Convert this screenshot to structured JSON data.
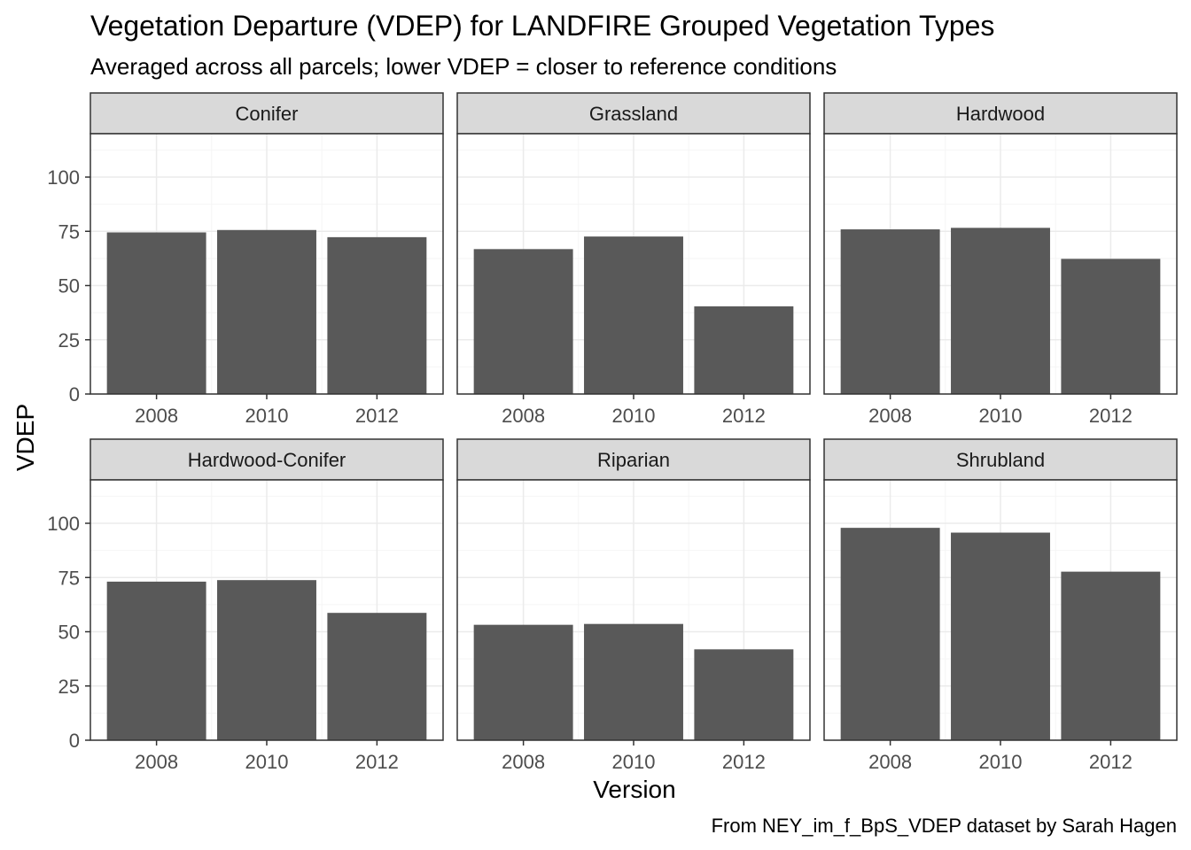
{
  "title": "Vegetation Departure (VDEP) for LANDFIRE Grouped Vegetation Types",
  "subtitle": "Averaged across all parcels; lower VDEP = closer to reference conditions",
  "caption": "From NEY_im_f_BpS_VDEP dataset by Sarah Hagen",
  "colors": {
    "bar": "#595959",
    "strip_fill": "#d9d9d9",
    "panel_border": "#333333",
    "grid_major": "#ebebeb",
    "grid_minor": "#f5f5f5",
    "tick_text": "#4d4d4d"
  },
  "chart_data": {
    "type": "bar",
    "layout": "faceted 2x3 grid",
    "xlabel": "Version",
    "ylabel": "VDEP",
    "categories": [
      "2008",
      "2010",
      "2012"
    ],
    "ylim": [
      0,
      120
    ],
    "yticks": [
      0,
      25,
      50,
      75,
      100
    ],
    "grid": true,
    "theme": "bw",
    "facets": [
      {
        "name": "Conifer",
        "values": [
          74.5,
          75.6,
          72.3
        ]
      },
      {
        "name": "Grassland",
        "values": [
          66.8,
          72.6,
          40.4
        ]
      },
      {
        "name": "Hardwood",
        "values": [
          75.9,
          76.6,
          62.3
        ]
      },
      {
        "name": "Hardwood-Conifer",
        "values": [
          73.1,
          73.8,
          58.7
        ]
      },
      {
        "name": "Riparian",
        "values": [
          53.2,
          53.6,
          41.9
        ]
      },
      {
        "name": "Shrubland",
        "values": [
          97.9,
          95.7,
          77.7
        ]
      }
    ]
  }
}
